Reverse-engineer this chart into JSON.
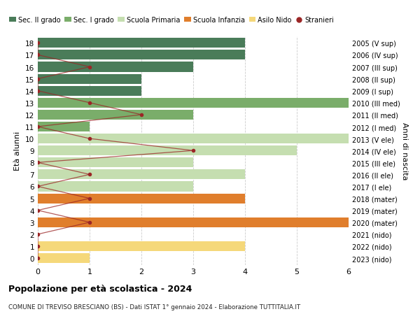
{
  "ages": [
    0,
    1,
    2,
    3,
    4,
    5,
    6,
    7,
    8,
    9,
    10,
    11,
    12,
    13,
    14,
    15,
    16,
    17,
    18
  ],
  "years": [
    "2023 (nido)",
    "2022 (nido)",
    "2021 (nido)",
    "2020 (mater)",
    "2019 (mater)",
    "2018 (mater)",
    "2017 (I ele)",
    "2016 (II ele)",
    "2015 (III ele)",
    "2014 (IV ele)",
    "2013 (V ele)",
    "2012 (I med)",
    "2011 (II med)",
    "2010 (III med)",
    "2009 (I sup)",
    "2008 (II sup)",
    "2007 (III sup)",
    "2006 (IV sup)",
    "2005 (V sup)"
  ],
  "bar_values": [
    1,
    4,
    0,
    6.1,
    0,
    4,
    3,
    4,
    3,
    5,
    6.1,
    1,
    3,
    6.1,
    2,
    2,
    3,
    4,
    4
  ],
  "bar_colors": [
    "#f5d87a",
    "#f5d87a",
    "#f5d87a",
    "#e07e2c",
    "#e07e2c",
    "#e07e2c",
    "#c5deb0",
    "#c5deb0",
    "#c5deb0",
    "#c5deb0",
    "#c5deb0",
    "#7aad6a",
    "#7aad6a",
    "#7aad6a",
    "#4a7c59",
    "#4a7c59",
    "#4a7c59",
    "#4a7c59",
    "#4a7c59"
  ],
  "stranieri_values": [
    0,
    0,
    0,
    1,
    0,
    1,
    0,
    1,
    0,
    3,
    1,
    0,
    2,
    1,
    0,
    0,
    1,
    0,
    0
  ],
  "title": "Popolazione per età scolastica - 2024",
  "subtitle": "COMUNE DI TREVISO BRESCIANO (BS) - Dati ISTAT 1° gennaio 2024 - Elaborazione TUTTITALIA.IT",
  "ylabel": "Età alunni",
  "ylabel2": "Anni di nascita",
  "xlim": [
    0,
    6
  ],
  "legend_labels": [
    "Sec. II grado",
    "Sec. I grado",
    "Scuola Primaria",
    "Scuola Infanzia",
    "Asilo Nido",
    "Stranieri"
  ],
  "legend_colors": [
    "#4a7c59",
    "#7aad6a",
    "#c5deb0",
    "#e07e2c",
    "#f5d87a",
    "#9b2626"
  ],
  "stranieri_color": "#9b2626",
  "background_color": "#ffffff",
  "grid_color": "#cccccc"
}
